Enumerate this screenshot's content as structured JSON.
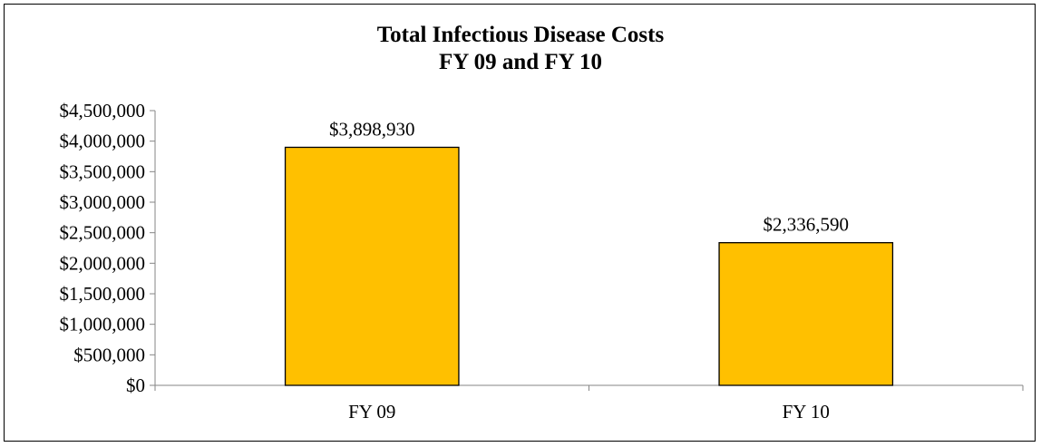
{
  "chart_data": {
    "type": "bar",
    "title": [
      "Total Infectious Disease Costs",
      "FY 09 and FY 10"
    ],
    "categories": [
      "FY 09",
      "FY 10"
    ],
    "values": [
      3898930,
      2336590
    ],
    "data_labels": [
      "$3,898,930",
      "$2,336,590"
    ],
    "ylim": [
      0,
      4500000
    ],
    "y_ticks": [
      0,
      500000,
      1000000,
      1500000,
      2000000,
      2500000,
      3000000,
      3500000,
      4000000,
      4500000
    ],
    "y_tick_labels": [
      "$0",
      "$500,000",
      "$1,000,000",
      "$1,500,000",
      "$2,000,000",
      "$2,500,000",
      "$3,000,000",
      "$3,500,000",
      "$4,000,000",
      "$4,500,000"
    ],
    "xlabel": "",
    "ylabel": "",
    "grid": false,
    "legend": "none",
    "bar_color": "#FFC000",
    "bar_edge_color": "#000000"
  }
}
